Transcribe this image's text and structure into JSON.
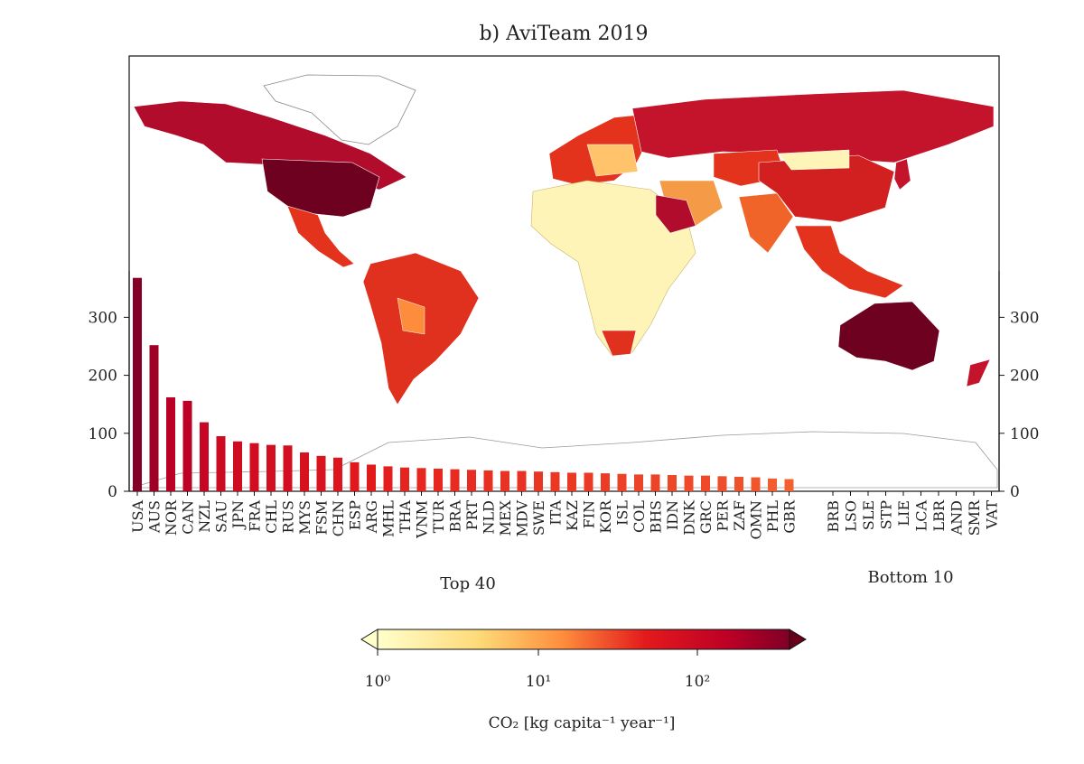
{
  "chart_data": {
    "type": "bar",
    "title": "b) AviTeam 2019",
    "ylabel": "",
    "ylim": [
      0,
      380
    ],
    "yticks": [
      "0",
      "100",
      "200",
      "300"
    ],
    "y_tick_values": [
      0,
      100,
      200,
      300
    ],
    "groups": [
      {
        "name": "top",
        "label": "Top 40"
      },
      {
        "name": "bottom",
        "label": "Bottom 10"
      }
    ],
    "top_categories": [
      "USA",
      "AUS",
      "NOR",
      "CAN",
      "NZL",
      "SAU",
      "JPN",
      "FRA",
      "CHL",
      "RUS",
      "MYS",
      "FSM",
      "CHN",
      "ESP",
      "ARG",
      "MHL",
      "THA",
      "VNM",
      "TUR",
      "BRA",
      "PRT",
      "NLD",
      "MEX",
      "MDV",
      "SWE",
      "ITA",
      "KAZ",
      "FIN",
      "KOR",
      "ISL",
      "COL",
      "BHS",
      "IDN",
      "DNK",
      "GRC",
      "PER",
      "ZAF",
      "OMN",
      "PHL",
      "GBR"
    ],
    "top_values": [
      368,
      252,
      162,
      156,
      119,
      95,
      86,
      83,
      80,
      79,
      67,
      61,
      58,
      50,
      46,
      43,
      41,
      40,
      39,
      38,
      37,
      36,
      35,
      35,
      34,
      33,
      32,
      32,
      31,
      30,
      29,
      29,
      28,
      27,
      27,
      26,
      25,
      24,
      22,
      21
    ],
    "bottom_categories": [
      "BRB",
      "LSO",
      "SLE",
      "STP",
      "LIE",
      "LCA",
      "LBR",
      "AND",
      "SMR",
      "VAT"
    ],
    "bottom_values": [
      0,
      0,
      0,
      0,
      0,
      0,
      0,
      0,
      0,
      0
    ],
    "colorbar": {
      "label": "CO₂ [kg capita⁻¹ year⁻¹]",
      "scale": "log",
      "tick_labels": [
        "10⁰",
        "10¹",
        "10²"
      ],
      "tick_values": [
        1,
        10,
        100
      ],
      "range": [
        0.8,
        400
      ],
      "cmap": "YlOrRd"
    },
    "background": "world choropleth map of per-capita aviation CO2 emissions"
  }
}
